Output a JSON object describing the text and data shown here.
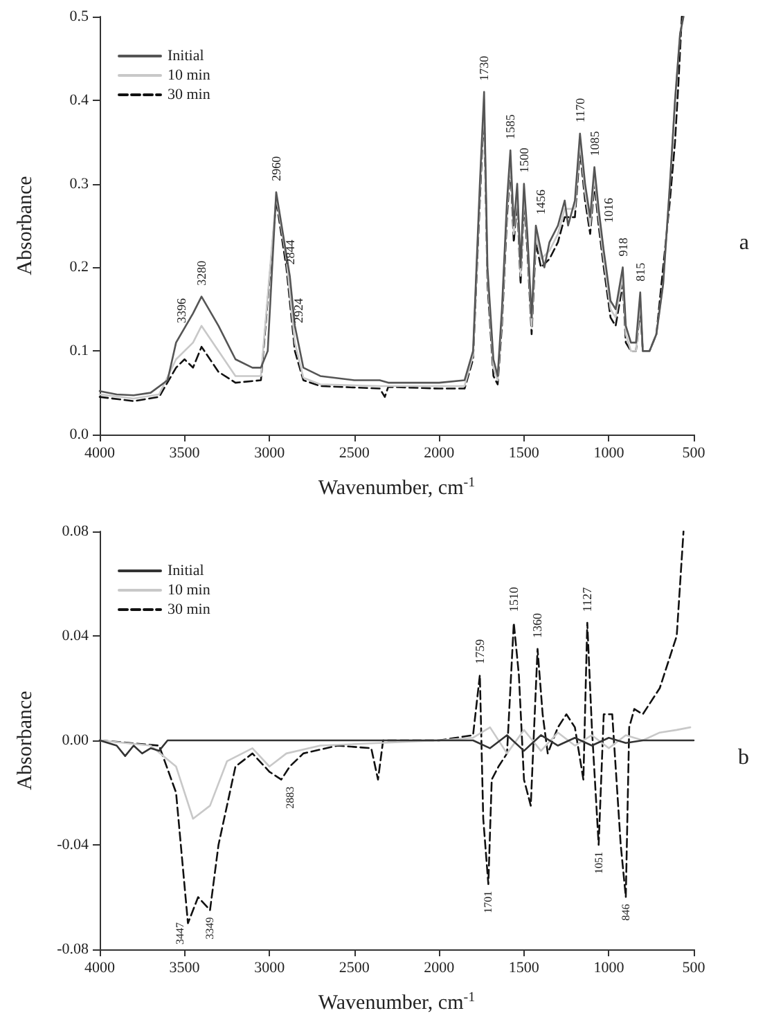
{
  "chart_data": [
    {
      "type": "line",
      "xlabel": "Wavenumber, cm$^{-1}$",
      "ylabel": "Absorbance",
      "legend": "top left",
      "grid": false,
      "marker": "none",
      "xlim": [
        4000,
        500
      ],
      "xticks": [
        4000,
        3500,
        3000,
        2500,
        2000,
        1500,
        1000,
        500
      ],
      "ylim": [
        0,
        0.5
      ],
      "yticks": [
        {
          "value": 0,
          "label": "0.0"
        },
        {
          "value": 0.1,
          "label": "0.1"
        },
        {
          "value": 0.2,
          "label": "0.2"
        },
        {
          "value": 0.3,
          "label": "0.3"
        },
        {
          "value": 0.4,
          "label": "0.4"
        },
        {
          "value": 0.5,
          "label": "0.5"
        }
      ],
      "annotations": [
        "a",
        {
          "text": "3396",
          "x": 3520,
          "y": 0.12
        },
        {
          "text": "3280",
          "x": 3400,
          "y": 0.165
        },
        {
          "text": "2960",
          "x": 2960,
          "y": 0.29
        },
        {
          "text": "2844",
          "x": 2880,
          "y": 0.19
        },
        {
          "text": "2924",
          "x": 2830,
          "y": 0.12
        },
        {
          "text": "1730",
          "x": 1735,
          "y": 0.41
        },
        {
          "text": "1585",
          "x": 1580,
          "y": 0.34
        },
        {
          "text": "1500",
          "x": 1500,
          "y": 0.3
        },
        {
          "text": "1456",
          "x": 1400,
          "y": 0.25
        },
        {
          "text": "1170",
          "x": 1170,
          "y": 0.36
        },
        {
          "text": "1085",
          "x": 1085,
          "y": 0.32
        },
        {
          "text": "1016",
          "x": 1000,
          "y": 0.24
        },
        {
          "text": "918",
          "x": 918,
          "y": 0.2
        },
        {
          "text": "815",
          "x": 815,
          "y": 0.17
        }
      ],
      "series": [
        {
          "name": "Initial",
          "color": "#555555",
          "line_style": "solid",
          "x": [
            4000,
            3900,
            3800,
            3700,
            3600,
            3550,
            3450,
            3400,
            3300,
            3200,
            3100,
            3050,
            3010,
            2960,
            2920,
            2880,
            2850,
            2800,
            2700,
            2500,
            2350,
            2300,
            2000,
            1850,
            1800,
            1760,
            1735,
            1715,
            1680,
            1655,
            1630,
            1600,
            1580,
            1560,
            1540,
            1520,
            1500,
            1480,
            1455,
            1430,
            1400,
            1380,
            1350,
            1300,
            1260,
            1240,
            1200,
            1170,
            1140,
            1110,
            1085,
            1060,
            1030,
            1016,
            990,
            960,
            918,
            900,
            870,
            840,
            815,
            800,
            760,
            720,
            680,
            640,
            610,
            580,
            560
          ],
          "values": [
            0.052,
            0.048,
            0.047,
            0.05,
            0.065,
            0.11,
            0.145,
            0.165,
            0.13,
            0.09,
            0.08,
            0.08,
            0.1,
            0.29,
            0.24,
            0.19,
            0.13,
            0.08,
            0.07,
            0.065,
            0.065,
            0.062,
            0.062,
            0.065,
            0.1,
            0.3,
            0.41,
            0.2,
            0.09,
            0.07,
            0.15,
            0.28,
            0.34,
            0.25,
            0.3,
            0.2,
            0.3,
            0.24,
            0.14,
            0.25,
            0.22,
            0.2,
            0.23,
            0.25,
            0.28,
            0.25,
            0.28,
            0.36,
            0.3,
            0.26,
            0.32,
            0.27,
            0.22,
            0.2,
            0.16,
            0.15,
            0.2,
            0.13,
            0.11,
            0.11,
            0.17,
            0.1,
            0.1,
            0.12,
            0.18,
            0.3,
            0.4,
            0.48,
            0.5
          ]
        },
        {
          "name": "10 min",
          "color": "#c8c8c8",
          "line_style": "solid",
          "x": [
            4000,
            3800,
            3650,
            3550,
            3450,
            3400,
            3300,
            3200,
            3050,
            2960,
            2900,
            2850,
            2800,
            2700,
            2350,
            2000,
            1850,
            1800,
            1760,
            1735,
            1715,
            1680,
            1655,
            1630,
            1600,
            1580,
            1560,
            1540,
            1520,
            1500,
            1480,
            1455,
            1430,
            1400,
            1350,
            1300,
            1260,
            1200,
            1170,
            1140,
            1110,
            1085,
            1060,
            1030,
            990,
            960,
            918,
            900,
            870,
            840,
            815,
            800,
            760,
            720,
            680,
            640,
            610,
            580,
            560
          ],
          "values": [
            0.048,
            0.043,
            0.048,
            0.09,
            0.11,
            0.13,
            0.1,
            0.07,
            0.07,
            0.285,
            0.21,
            0.11,
            0.068,
            0.06,
            0.058,
            0.058,
            0.058,
            0.095,
            0.29,
            0.4,
            0.19,
            0.08,
            0.065,
            0.14,
            0.27,
            0.33,
            0.24,
            0.29,
            0.19,
            0.29,
            0.23,
            0.13,
            0.24,
            0.21,
            0.22,
            0.24,
            0.27,
            0.27,
            0.35,
            0.29,
            0.25,
            0.31,
            0.26,
            0.21,
            0.15,
            0.14,
            0.19,
            0.12,
            0.1,
            0.1,
            0.16,
            0.1,
            0.1,
            0.12,
            0.18,
            0.3,
            0.4,
            0.48,
            0.5
          ]
        },
        {
          "name": "30 min",
          "color": "#111111",
          "line_style": "dashed",
          "x": [
            4000,
            3800,
            3650,
            3550,
            3500,
            3450,
            3400,
            3300,
            3200,
            3050,
            2960,
            2900,
            2850,
            2800,
            2700,
            2350,
            2320,
            2300,
            2000,
            1850,
            1800,
            1760,
            1735,
            1715,
            1680,
            1655,
            1630,
            1600,
            1580,
            1560,
            1540,
            1520,
            1500,
            1480,
            1455,
            1430,
            1400,
            1350,
            1300,
            1260,
            1200,
            1170,
            1140,
            1110,
            1085,
            1060,
            1030,
            990,
            960,
            918,
            900,
            870,
            840,
            815,
            800,
            760,
            720,
            680,
            640,
            610,
            590,
            570
          ],
          "values": [
            0.045,
            0.04,
            0.045,
            0.08,
            0.09,
            0.08,
            0.105,
            0.075,
            0.062,
            0.065,
            0.28,
            0.2,
            0.1,
            0.065,
            0.058,
            0.055,
            0.045,
            0.057,
            0.055,
            0.055,
            0.09,
            0.28,
            0.39,
            0.18,
            0.07,
            0.06,
            0.13,
            0.26,
            0.32,
            0.23,
            0.28,
            0.18,
            0.28,
            0.22,
            0.12,
            0.23,
            0.2,
            0.21,
            0.23,
            0.26,
            0.26,
            0.34,
            0.28,
            0.24,
            0.3,
            0.25,
            0.2,
            0.14,
            0.13,
            0.18,
            0.11,
            0.1,
            0.1,
            0.15,
            0.1,
            0.1,
            0.12,
            0.2,
            0.28,
            0.35,
            0.42,
            0.5
          ]
        }
      ]
    },
    {
      "type": "line",
      "xlabel": "Wavenumber, cm$^{-1}$",
      "ylabel": "Absorbance",
      "legend": "top left",
      "grid": false,
      "marker": "none",
      "xlim": [
        4000,
        500
      ],
      "xticks": [
        4000,
        3500,
        3000,
        2500,
        2000,
        1500,
        1000,
        500
      ],
      "ylim": [
        -0.08,
        0.08
      ],
      "yticks": [
        {
          "value": -0.08,
          "label": "-0.08"
        },
        {
          "value": -0.04,
          "label": "-0.04"
        },
        {
          "value": 0,
          "label": "0.00"
        },
        {
          "value": 0.04,
          "label": "0.04"
        },
        {
          "value": 0.08,
          "label": "0.08"
        }
      ],
      "annotations": [
        "b",
        {
          "text": "3447",
          "x": 3525,
          "y": -0.067
        },
        {
          "text": "3349",
          "x": 3350,
          "y": -0.065
        },
        {
          "text": "2883",
          "x": 2880,
          "y": -0.015
        },
        {
          "text": "1759",
          "x": 1760,
          "y": 0.025
        },
        {
          "text": "1701",
          "x": 1710,
          "y": -0.055
        },
        {
          "text": "1510",
          "x": 1560,
          "y": 0.045
        },
        {
          "text": "1360",
          "x": 1420,
          "y": 0.035
        },
        {
          "text": "1127",
          "x": 1127,
          "y": 0.045
        },
        {
          "text": "1051",
          "x": 1060,
          "y": -0.04
        },
        {
          "text": "846",
          "x": 900,
          "y": -0.06
        }
      ],
      "series": [
        {
          "name": "Initial",
          "color": "#333333",
          "line_style": "solid",
          "x": [
            4000,
            3900,
            3850,
            3800,
            3750,
            3700,
            3650,
            3600,
            3400,
            3000,
            2500,
            2000,
            1800,
            1700,
            1600,
            1500,
            1400,
            1300,
            1200,
            1100,
            1000,
            900,
            800,
            700,
            600,
            500
          ],
          "values": [
            0,
            -0.002,
            -0.006,
            -0.002,
            -0.005,
            -0.003,
            -0.004,
            0,
            0,
            0,
            0,
            0,
            0,
            -0.003,
            0.002,
            -0.004,
            0.002,
            -0.002,
            0.001,
            -0.002,
            0.001,
            -0.001,
            0,
            0,
            0,
            0
          ]
        },
        {
          "name": "10 min",
          "color": "#c8c8c8",
          "line_style": "solid",
          "x": [
            4000,
            3700,
            3550,
            3450,
            3350,
            3250,
            3100,
            3000,
            2900,
            2700,
            2000,
            1800,
            1700,
            1600,
            1500,
            1400,
            1300,
            1200,
            1100,
            1000,
            900,
            800,
            700,
            600,
            520
          ],
          "values": [
            0,
            -0.002,
            -0.01,
            -0.03,
            -0.025,
            -0.008,
            -0.003,
            -0.01,
            -0.005,
            -0.002,
            0,
            0.001,
            0.005,
            -0.005,
            0.004,
            -0.004,
            0.003,
            -0.002,
            0.002,
            -0.003,
            0.002,
            0,
            0.003,
            0.004,
            0.005
          ]
        },
        {
          "name": "30 min",
          "color": "#111111",
          "line_style": "dashed",
          "x": [
            4000,
            3650,
            3550,
            3480,
            3420,
            3350,
            3300,
            3200,
            3100,
            3000,
            2930,
            2880,
            2800,
            2600,
            2400,
            2360,
            2330,
            2000,
            1800,
            1760,
            1740,
            1710,
            1690,
            1650,
            1600,
            1560,
            1530,
            1500,
            1460,
            1420,
            1390,
            1360,
            1300,
            1250,
            1200,
            1150,
            1127,
            1100,
            1060,
            1030,
            980,
            930,
            900,
            880,
            850,
            800,
            700,
            600,
            560
          ],
          "values": [
            0,
            -0.002,
            -0.02,
            -0.07,
            -0.06,
            -0.065,
            -0.04,
            -0.01,
            -0.005,
            -0.012,
            -0.015,
            -0.01,
            -0.005,
            -0.002,
            -0.003,
            -0.015,
            0,
            0,
            0.002,
            0.025,
            -0.03,
            -0.055,
            -0.015,
            -0.01,
            -0.005,
            0.045,
            0.025,
            -0.015,
            -0.025,
            0.035,
            0.01,
            -0.005,
            0.005,
            0.01,
            0.005,
            -0.015,
            0.045,
            0.005,
            -0.04,
            0.01,
            0.01,
            -0.04,
            -0.06,
            0.005,
            0.012,
            0.01,
            0.02,
            0.04,
            0.08
          ]
        }
      ]
    }
  ]
}
